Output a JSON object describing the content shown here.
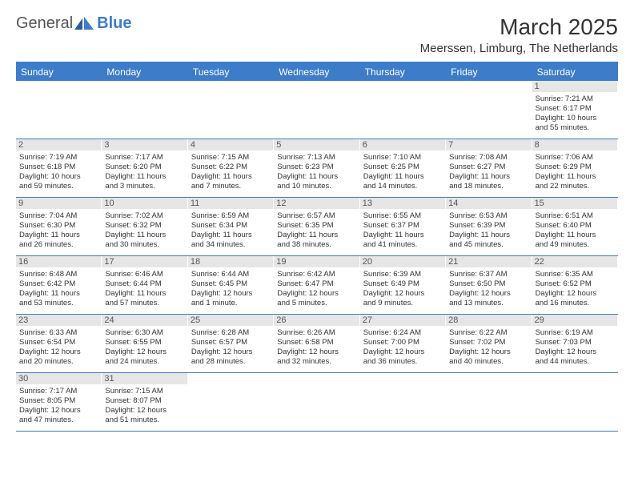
{
  "logo": {
    "text1": "General",
    "text2": "Blue"
  },
  "title": "March 2025",
  "location": "Meerssen, Limburg, The Netherlands",
  "colors": {
    "accent": "#3d7cc9",
    "daynum_bg": "#e6e6e6",
    "text": "#333333"
  },
  "weekdays": [
    "Sunday",
    "Monday",
    "Tuesday",
    "Wednesday",
    "Thursday",
    "Friday",
    "Saturday"
  ],
  "weeks": [
    [
      null,
      null,
      null,
      null,
      null,
      null,
      {
        "n": "1",
        "sunrise": "Sunrise: 7:21 AM",
        "sunset": "Sunset: 6:17 PM",
        "day1": "Daylight: 10 hours",
        "day2": "and 55 minutes."
      }
    ],
    [
      {
        "n": "2",
        "sunrise": "Sunrise: 7:19 AM",
        "sunset": "Sunset: 6:18 PM",
        "day1": "Daylight: 10 hours",
        "day2": "and 59 minutes."
      },
      {
        "n": "3",
        "sunrise": "Sunrise: 7:17 AM",
        "sunset": "Sunset: 6:20 PM",
        "day1": "Daylight: 11 hours",
        "day2": "and 3 minutes."
      },
      {
        "n": "4",
        "sunrise": "Sunrise: 7:15 AM",
        "sunset": "Sunset: 6:22 PM",
        "day1": "Daylight: 11 hours",
        "day2": "and 7 minutes."
      },
      {
        "n": "5",
        "sunrise": "Sunrise: 7:13 AM",
        "sunset": "Sunset: 6:23 PM",
        "day1": "Daylight: 11 hours",
        "day2": "and 10 minutes."
      },
      {
        "n": "6",
        "sunrise": "Sunrise: 7:10 AM",
        "sunset": "Sunset: 6:25 PM",
        "day1": "Daylight: 11 hours",
        "day2": "and 14 minutes."
      },
      {
        "n": "7",
        "sunrise": "Sunrise: 7:08 AM",
        "sunset": "Sunset: 6:27 PM",
        "day1": "Daylight: 11 hours",
        "day2": "and 18 minutes."
      },
      {
        "n": "8",
        "sunrise": "Sunrise: 7:06 AM",
        "sunset": "Sunset: 6:29 PM",
        "day1": "Daylight: 11 hours",
        "day2": "and 22 minutes."
      }
    ],
    [
      {
        "n": "9",
        "sunrise": "Sunrise: 7:04 AM",
        "sunset": "Sunset: 6:30 PM",
        "day1": "Daylight: 11 hours",
        "day2": "and 26 minutes."
      },
      {
        "n": "10",
        "sunrise": "Sunrise: 7:02 AM",
        "sunset": "Sunset: 6:32 PM",
        "day1": "Daylight: 11 hours",
        "day2": "and 30 minutes."
      },
      {
        "n": "11",
        "sunrise": "Sunrise: 6:59 AM",
        "sunset": "Sunset: 6:34 PM",
        "day1": "Daylight: 11 hours",
        "day2": "and 34 minutes."
      },
      {
        "n": "12",
        "sunrise": "Sunrise: 6:57 AM",
        "sunset": "Sunset: 6:35 PM",
        "day1": "Daylight: 11 hours",
        "day2": "and 38 minutes."
      },
      {
        "n": "13",
        "sunrise": "Sunrise: 6:55 AM",
        "sunset": "Sunset: 6:37 PM",
        "day1": "Daylight: 11 hours",
        "day2": "and 41 minutes."
      },
      {
        "n": "14",
        "sunrise": "Sunrise: 6:53 AM",
        "sunset": "Sunset: 6:39 PM",
        "day1": "Daylight: 11 hours",
        "day2": "and 45 minutes."
      },
      {
        "n": "15",
        "sunrise": "Sunrise: 6:51 AM",
        "sunset": "Sunset: 6:40 PM",
        "day1": "Daylight: 11 hours",
        "day2": "and 49 minutes."
      }
    ],
    [
      {
        "n": "16",
        "sunrise": "Sunrise: 6:48 AM",
        "sunset": "Sunset: 6:42 PM",
        "day1": "Daylight: 11 hours",
        "day2": "and 53 minutes."
      },
      {
        "n": "17",
        "sunrise": "Sunrise: 6:46 AM",
        "sunset": "Sunset: 6:44 PM",
        "day1": "Daylight: 11 hours",
        "day2": "and 57 minutes."
      },
      {
        "n": "18",
        "sunrise": "Sunrise: 6:44 AM",
        "sunset": "Sunset: 6:45 PM",
        "day1": "Daylight: 12 hours",
        "day2": "and 1 minute."
      },
      {
        "n": "19",
        "sunrise": "Sunrise: 6:42 AM",
        "sunset": "Sunset: 6:47 PM",
        "day1": "Daylight: 12 hours",
        "day2": "and 5 minutes."
      },
      {
        "n": "20",
        "sunrise": "Sunrise: 6:39 AM",
        "sunset": "Sunset: 6:49 PM",
        "day1": "Daylight: 12 hours",
        "day2": "and 9 minutes."
      },
      {
        "n": "21",
        "sunrise": "Sunrise: 6:37 AM",
        "sunset": "Sunset: 6:50 PM",
        "day1": "Daylight: 12 hours",
        "day2": "and 13 minutes."
      },
      {
        "n": "22",
        "sunrise": "Sunrise: 6:35 AM",
        "sunset": "Sunset: 6:52 PM",
        "day1": "Daylight: 12 hours",
        "day2": "and 16 minutes."
      }
    ],
    [
      {
        "n": "23",
        "sunrise": "Sunrise: 6:33 AM",
        "sunset": "Sunset: 6:54 PM",
        "day1": "Daylight: 12 hours",
        "day2": "and 20 minutes."
      },
      {
        "n": "24",
        "sunrise": "Sunrise: 6:30 AM",
        "sunset": "Sunset: 6:55 PM",
        "day1": "Daylight: 12 hours",
        "day2": "and 24 minutes."
      },
      {
        "n": "25",
        "sunrise": "Sunrise: 6:28 AM",
        "sunset": "Sunset: 6:57 PM",
        "day1": "Daylight: 12 hours",
        "day2": "and 28 minutes."
      },
      {
        "n": "26",
        "sunrise": "Sunrise: 6:26 AM",
        "sunset": "Sunset: 6:58 PM",
        "day1": "Daylight: 12 hours",
        "day2": "and 32 minutes."
      },
      {
        "n": "27",
        "sunrise": "Sunrise: 6:24 AM",
        "sunset": "Sunset: 7:00 PM",
        "day1": "Daylight: 12 hours",
        "day2": "and 36 minutes."
      },
      {
        "n": "28",
        "sunrise": "Sunrise: 6:22 AM",
        "sunset": "Sunset: 7:02 PM",
        "day1": "Daylight: 12 hours",
        "day2": "and 40 minutes."
      },
      {
        "n": "29",
        "sunrise": "Sunrise: 6:19 AM",
        "sunset": "Sunset: 7:03 PM",
        "day1": "Daylight: 12 hours",
        "day2": "and 44 minutes."
      }
    ],
    [
      {
        "n": "30",
        "sunrise": "Sunrise: 7:17 AM",
        "sunset": "Sunset: 8:05 PM",
        "day1": "Daylight: 12 hours",
        "day2": "and 47 minutes."
      },
      {
        "n": "31",
        "sunrise": "Sunrise: 7:15 AM",
        "sunset": "Sunset: 8:07 PM",
        "day1": "Daylight: 12 hours",
        "day2": "and 51 minutes."
      },
      null,
      null,
      null,
      null,
      null
    ]
  ]
}
